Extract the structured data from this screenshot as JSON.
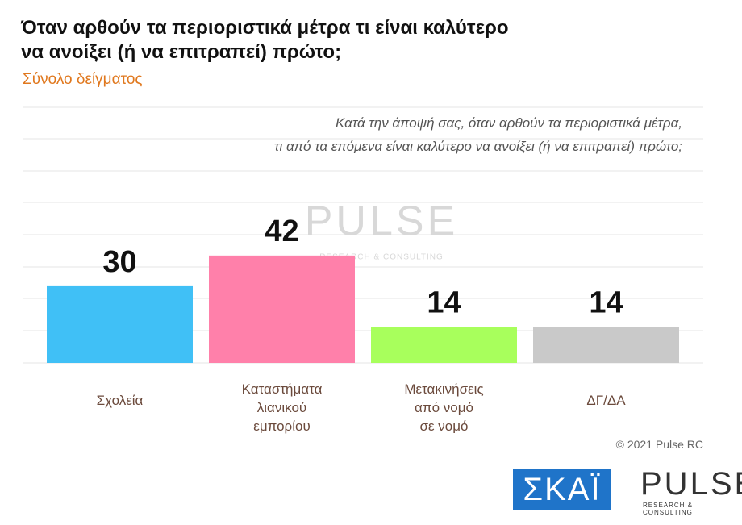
{
  "chart_data": {
    "type": "bar",
    "title": "Όταν αρθούν τα περιοριστικά μέτρα τι είναι καλύτερο\nνα ανοίξει (ή να επιτραπεί) πρώτο;",
    "subtitle": "Σύνολο δείγματος",
    "question": "Κατά την άποψή σας, όταν αρθούν τα περιοριστικά μέτρα,\nτι από τα επόμενα είναι καλύτερο να ανοίξει (ή να επιτραπεί) πρώτο;",
    "categories": [
      "Σχολεία",
      "Καταστήματα\nλιανικού\nεμπορίου",
      "Μετακινήσεις\nαπό νομό\nσε νομό",
      "ΔΓ/ΔΑ"
    ],
    "values": [
      30,
      42,
      14,
      14
    ],
    "colors": [
      "#40c0f6",
      "#ff80aa",
      "#a8ff5c",
      "#c9c9c9"
    ],
    "ylim": [
      0,
      100
    ],
    "copyright": "© 2021 Pulse RC",
    "logos": {
      "skai": "ΣΚΑΪ",
      "pulse": "PULSE",
      "pulse_tagline": "RESEARCH & CONSULTING"
    }
  }
}
